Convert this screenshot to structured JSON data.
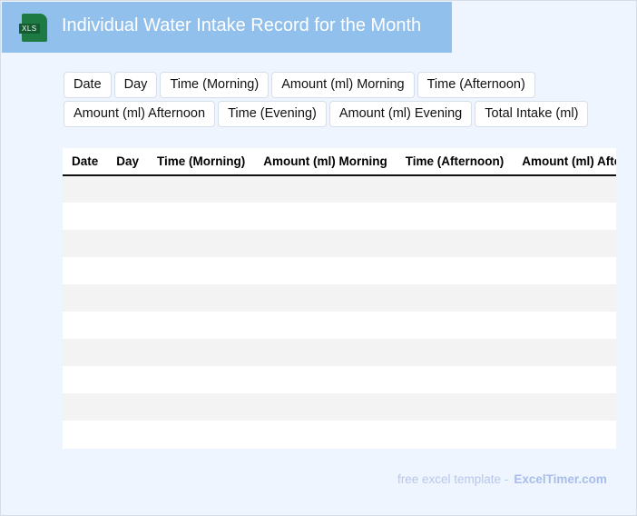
{
  "header": {
    "title": "Individual Water Intake Record for the Month",
    "icon": "xls-file-icon",
    "icon_label": "XLS"
  },
  "fields": [
    "Date",
    "Day",
    "Time (Morning)",
    "Amount (ml) Morning",
    "Time (Afternoon)",
    "Amount (ml) Afternoon",
    "Time (Evening)",
    "Amount (ml) Evening",
    "Total Intake (ml)"
  ],
  "table": {
    "columns": [
      "Date",
      "Day",
      "Time (Morning)",
      "Amount (ml) Morning",
      "Time (Afternoon)",
      "Amount (ml) Afternoon",
      "Time (Evening)",
      "Amount (ml) Evening",
      "Total Intake (ml)"
    ],
    "row_count": 10
  },
  "footer": {
    "text": "free excel template -",
    "brand": "ExcelTimer.com"
  }
}
